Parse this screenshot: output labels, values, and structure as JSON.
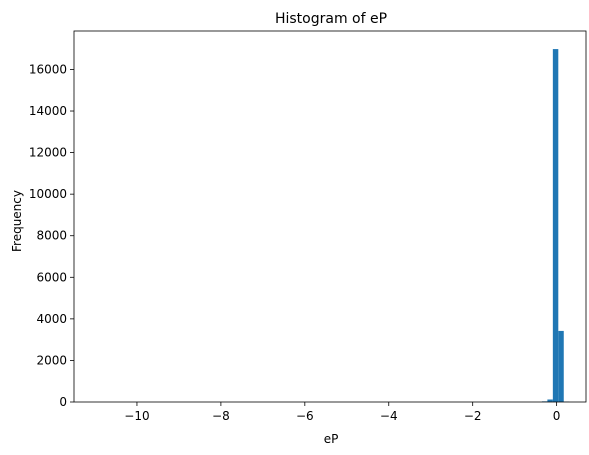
{
  "chart_data": {
    "type": "bar",
    "title": "Histogram of eP",
    "xlabel": "eP",
    "ylabel": "Frequency",
    "xlim": [
      -11.5,
      0.7
    ],
    "ylim": [
      0,
      17850
    ],
    "grid": false,
    "legend": "none",
    "bar_color": "#1f77b4",
    "xticks": [
      -10,
      -8,
      -6,
      -4,
      -2,
      0
    ],
    "xtick_labels": [
      "−10",
      "−8",
      "−6",
      "−4",
      "−2",
      "0"
    ],
    "yticks": [
      0,
      2000,
      4000,
      6000,
      8000,
      10000,
      12000,
      14000,
      16000
    ],
    "ytick_labels": [
      "0",
      "2000",
      "4000",
      "6000",
      "8000",
      "10000",
      "12000",
      "14000",
      "16000"
    ],
    "bins": [
      {
        "x0": -0.35,
        "x1": -0.22,
        "count": 30
      },
      {
        "x0": -0.22,
        "x1": -0.09,
        "count": 120
      },
      {
        "x0": -0.09,
        "x1": 0.04,
        "count": 16980
      },
      {
        "x0": 0.04,
        "x1": 0.17,
        "count": 3420
      },
      {
        "x0": 0.17,
        "x1": 0.3,
        "count": 15
      }
    ]
  }
}
